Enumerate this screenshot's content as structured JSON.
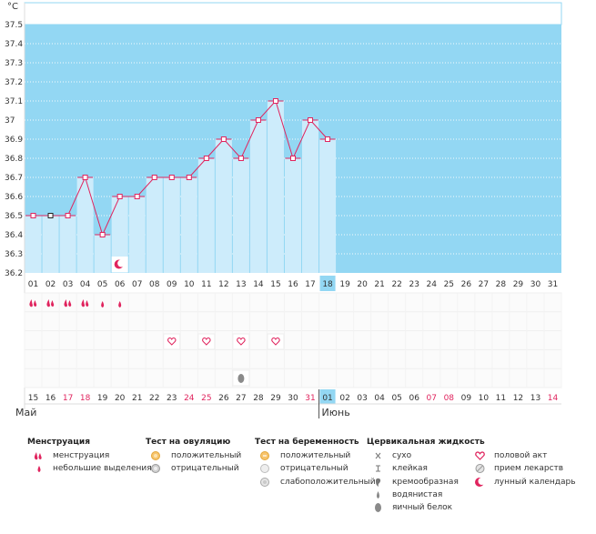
{
  "chart_data": {
    "type": "line",
    "unit_label": "°C",
    "y_ticks": [
      "37.5",
      "37.4",
      "37.3",
      "37.2",
      "37.1",
      "37",
      "36.9",
      "36.8",
      "36.7",
      "36.6",
      "36.5",
      "36.4",
      "36.3",
      "36.2"
    ],
    "ylim": [
      36.2,
      37.5
    ],
    "cycle_days": [
      "01",
      "02",
      "03",
      "04",
      "05",
      "06",
      "07",
      "08",
      "09",
      "10",
      "11",
      "12",
      "13",
      "14",
      "15",
      "16",
      "17",
      "18",
      "19",
      "20",
      "21",
      "22",
      "23",
      "24",
      "25",
      "26",
      "27",
      "28",
      "29",
      "30",
      "31"
    ],
    "current_day": "18",
    "temperatures": [
      36.5,
      36.5,
      36.5,
      36.7,
      36.4,
      36.6,
      36.6,
      36.7,
      36.7,
      36.7,
      36.8,
      36.9,
      36.8,
      37.0,
      37.1,
      36.8,
      37.0,
      36.9
    ],
    "dates": [
      {
        "d": "15",
        "red": false
      },
      {
        "d": "16",
        "red": false
      },
      {
        "d": "17",
        "red": true
      },
      {
        "d": "18",
        "red": true
      },
      {
        "d": "19",
        "red": false
      },
      {
        "d": "20",
        "red": false
      },
      {
        "d": "21",
        "red": false
      },
      {
        "d": "22",
        "red": false
      },
      {
        "d": "23",
        "red": false
      },
      {
        "d": "24",
        "red": true
      },
      {
        "d": "25",
        "red": true
      },
      {
        "d": "26",
        "red": false
      },
      {
        "d": "27",
        "red": false
      },
      {
        "d": "28",
        "red": false
      },
      {
        "d": "29",
        "red": false
      },
      {
        "d": "30",
        "red": false
      },
      {
        "d": "31",
        "red": true
      },
      {
        "d": "01",
        "red": false
      },
      {
        "d": "02",
        "red": false
      },
      {
        "d": "03",
        "red": false
      },
      {
        "d": "04",
        "red": false
      },
      {
        "d": "05",
        "red": false
      },
      {
        "d": "06",
        "red": false
      },
      {
        "d": "07",
        "red": true
      },
      {
        "d": "08",
        "red": true
      },
      {
        "d": "09",
        "red": false
      },
      {
        "d": "10",
        "red": false
      },
      {
        "d": "11",
        "red": false
      },
      {
        "d": "12",
        "red": false
      },
      {
        "d": "13",
        "red": false
      },
      {
        "d": "14",
        "red": true
      }
    ],
    "months": [
      "Май",
      "Июнь"
    ],
    "events": [
      {
        "day": 1,
        "type": "menstruation"
      },
      {
        "day": 2,
        "type": "menstruation"
      },
      {
        "day": 3,
        "type": "menstruation"
      },
      {
        "day": 4,
        "type": "menstruation"
      },
      {
        "day": 5,
        "type": "light-spotting"
      },
      {
        "day": 6,
        "type": "light-spotting"
      },
      {
        "day": 6,
        "type": "lunar-calendar"
      },
      {
        "day": 9,
        "type": "intercourse"
      },
      {
        "day": 11,
        "type": "intercourse"
      },
      {
        "day": 13,
        "type": "intercourse"
      },
      {
        "day": 15,
        "type": "intercourse"
      },
      {
        "day": 13,
        "type": "egg-white"
      }
    ]
  },
  "legend": {
    "menstruation": {
      "title": "Менструация",
      "items": [
        {
          "label": "менструация",
          "icon": "menstruation-icon"
        },
        {
          "label": "небольшие выделения",
          "icon": "light-spotting-icon"
        }
      ]
    },
    "ovulation_test": {
      "title": "Тест на овуляцию",
      "items": [
        {
          "label": "положительный",
          "icon": "ovulation-positive-icon"
        },
        {
          "label": "отрицательный",
          "icon": "ovulation-negative-icon"
        }
      ]
    },
    "pregnancy_test": {
      "title": "Тест на беременность",
      "items": [
        {
          "label": "положительный",
          "icon": "pregnancy-positive-icon"
        },
        {
          "label": "отрицательный",
          "icon": "pregnancy-negative-icon"
        },
        {
          "label": "слабоположительный",
          "icon": "pregnancy-weak-icon"
        }
      ]
    },
    "cervical_fluid": {
      "title": "Цервикальная жидкость",
      "items": [
        {
          "label": "сухо",
          "icon": "dry-icon"
        },
        {
          "label": "клейкая",
          "icon": "sticky-icon"
        },
        {
          "label": "кремообразная",
          "icon": "creamy-icon"
        },
        {
          "label": "водянистая",
          "icon": "watery-icon"
        },
        {
          "label": "яичный белок",
          "icon": "egg-white-icon"
        }
      ]
    },
    "other": {
      "items": [
        {
          "label": "половой акт",
          "icon": "heart-icon"
        },
        {
          "label": "прием лекарств",
          "icon": "medication-icon"
        },
        {
          "label": "лунный календарь",
          "icon": "moon-icon"
        }
      ]
    }
  },
  "colors": {
    "sky": "#93D7F3",
    "bar": "#CDECFB",
    "line": "#E0245E",
    "red_text": "#E0245E",
    "highlight": "#93D7F3"
  }
}
